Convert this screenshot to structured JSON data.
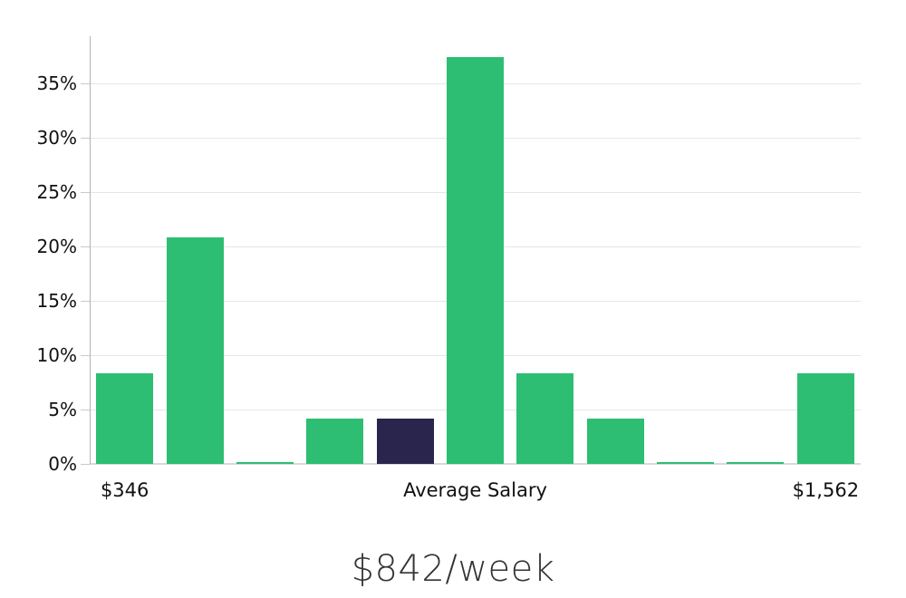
{
  "chart_data": {
    "type": "bar",
    "title": "$842/week",
    "xlabel": "",
    "ylabel": "",
    "y_ticks": [
      0,
      5,
      10,
      15,
      20,
      25,
      30,
      35
    ],
    "y_tick_suffix": "%",
    "ylim": [
      0,
      39.3
    ],
    "grid": true,
    "legend": "none",
    "categories": [
      "bin-1",
      "bin-2",
      "bin-3",
      "bin-4",
      "bin-5",
      "bin-6",
      "bin-7",
      "bin-8",
      "bin-9",
      "bin-10",
      "bin-11"
    ],
    "bar_values": [
      8.3,
      20.8,
      0.2,
      4.2,
      4.2,
      37.4,
      8.3,
      4.2,
      0.2,
      0.2,
      8.3
    ],
    "highlighted_bar_index": 4,
    "x_tick_labels": [
      {
        "bar_index": 0,
        "text": "$346"
      },
      {
        "bar_index": 5,
        "text": "Average Salary"
      },
      {
        "bar_index": 10,
        "text": "$1,562"
      }
    ],
    "colors": {
      "bar_fill": "#2dbe73",
      "highlight_fill": "#29254c",
      "gridline": "#e6e6e6",
      "baseline": "#d9d9d9",
      "axis_line": "#b3b3b3",
      "tick_mark": "#c9c9c9",
      "tick_label": "#111111",
      "title": "#333333"
    }
  }
}
